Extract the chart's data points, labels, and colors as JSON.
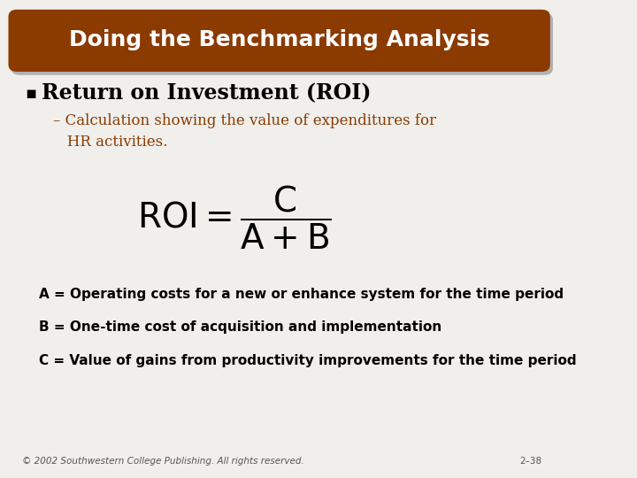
{
  "title": "Doing the Benchmarking Analysis",
  "title_bg_color": "#8B3A00",
  "title_text_color": "#FFFFFF",
  "bg_color": "#F0EFEC",
  "bullet_heading": "Return on Investment (ROI)",
  "bullet_heading_color": "#000000",
  "sub_bullet": "– Calculation showing the value of expenditures for\n   HR activities.",
  "sub_bullet_color": "#8B3A00",
  "formula": "ROI = \\dfrac{C}{A + B}",
  "formula_color": "#000000",
  "line_a": "A = Operating costs for a new or enhance system for the time period",
  "line_b": "B = One-time cost of acquisition and implementation",
  "line_c": "C = Value of gains from productivity improvements for the time period",
  "lines_color": "#000000",
  "footer_left": "© 2002 Southwestern College Publishing. All rights reserved.",
  "footer_right": "2–38",
  "footer_color": "#555555"
}
